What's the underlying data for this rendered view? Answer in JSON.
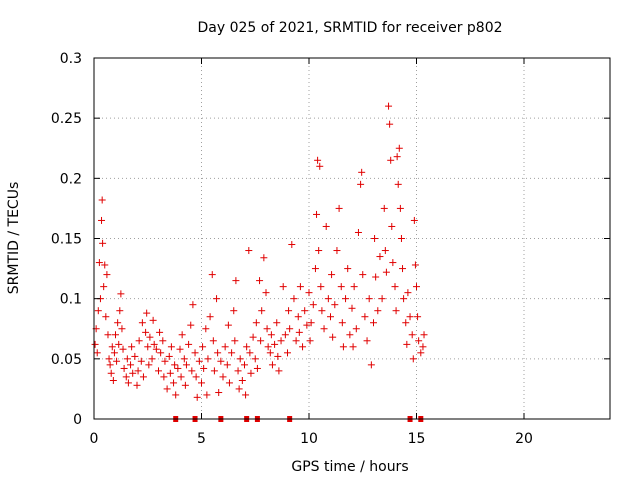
{
  "chart_data": {
    "type": "scatter",
    "title": "Day 025 of 2021, SRMTID for receiver p802",
    "xlabel": "GPS time / hours",
    "ylabel": "SRMTID / TECUs",
    "xlim": [
      0,
      24
    ],
    "ylim": [
      0,
      0.3
    ],
    "x_ticks": [
      0,
      5,
      10,
      15,
      20
    ],
    "y_ticks": [
      0,
      0.05,
      0.1,
      0.15,
      0.2,
      0.25,
      0.3
    ],
    "x_tick_labels": [
      "0",
      "5",
      "10",
      "15",
      "20"
    ],
    "y_tick_labels": [
      "0",
      "0.05",
      "0.1",
      "0.15",
      "0.2",
      "0.25",
      "0.3"
    ],
    "grid": true,
    "marker": "plus",
    "color": "#e00000",
    "series": [
      {
        "name": "SRMTID",
        "points": [
          [
            0.05,
            0.062
          ],
          [
            0.1,
            0.075
          ],
          [
            0.15,
            0.055
          ],
          [
            0.2,
            0.09
          ],
          [
            0.25,
            0.13
          ],
          [
            0.3,
            0.1
          ],
          [
            0.35,
            0.165
          ],
          [
            0.38,
            0.182
          ],
          [
            0.4,
            0.146
          ],
          [
            0.45,
            0.11
          ],
          [
            0.5,
            0.128
          ],
          [
            0.55,
            0.085
          ],
          [
            0.6,
            0.12
          ],
          [
            0.65,
            0.07
          ],
          [
            0.7,
            0.05
          ],
          [
            0.75,
            0.045
          ],
          [
            0.8,
            0.038
          ],
          [
            0.85,
            0.06
          ],
          [
            0.9,
            0.032
          ],
          [
            0.95,
            0.055
          ],
          [
            1.0,
            0.07
          ],
          [
            1.05,
            0.048
          ],
          [
            1.1,
            0.08
          ],
          [
            1.15,
            0.062
          ],
          [
            1.2,
            0.09
          ],
          [
            1.25,
            0.104
          ],
          [
            1.3,
            0.075
          ],
          [
            1.35,
            0.058
          ],
          [
            1.4,
            0.042
          ],
          [
            1.5,
            0.035
          ],
          [
            1.55,
            0.05
          ],
          [
            1.6,
            0.03
          ],
          [
            1.7,
            0.045
          ],
          [
            1.75,
            0.06
          ],
          [
            1.8,
            0.038
          ],
          [
            1.9,
            0.052
          ],
          [
            2.0,
            0.028
          ],
          [
            2.05,
            0.04
          ],
          [
            2.1,
            0.065
          ],
          [
            2.2,
            0.048
          ],
          [
            2.25,
            0.08
          ],
          [
            2.3,
            0.035
          ],
          [
            2.4,
            0.072
          ],
          [
            2.45,
            0.088
          ],
          [
            2.5,
            0.06
          ],
          [
            2.55,
            0.045
          ],
          [
            2.6,
            0.068
          ],
          [
            2.7,
            0.05
          ],
          [
            2.75,
            0.082
          ],
          [
            2.8,
            0.062
          ],
          [
            2.9,
            0.058
          ],
          [
            3.0,
            0.04
          ],
          [
            3.05,
            0.072
          ],
          [
            3.1,
            0.055
          ],
          [
            3.2,
            0.065
          ],
          [
            3.25,
            0.035
          ],
          [
            3.3,
            0.048
          ],
          [
            3.4,
            0.025
          ],
          [
            3.5,
            0.052
          ],
          [
            3.55,
            0.038
          ],
          [
            3.6,
            0.06
          ],
          [
            3.7,
            0.03
          ],
          [
            3.75,
            0.045
          ],
          [
            3.8,
            0.02
          ],
          [
            3.9,
            0.042
          ],
          [
            4.0,
            0.058
          ],
          [
            4.05,
            0.035
          ],
          [
            4.1,
            0.07
          ],
          [
            4.2,
            0.05
          ],
          [
            4.25,
            0.028
          ],
          [
            4.3,
            0.045
          ],
          [
            4.4,
            0.062
          ],
          [
            4.5,
            0.078
          ],
          [
            4.55,
            0.04
          ],
          [
            4.6,
            0.095
          ],
          [
            4.7,
            0.055
          ],
          [
            4.75,
            0.035
          ],
          [
            4.8,
            0.018
          ],
          [
            4.9,
            0.048
          ],
          [
            5.0,
            0.03
          ],
          [
            5.05,
            0.06
          ],
          [
            5.1,
            0.042
          ],
          [
            5.2,
            0.075
          ],
          [
            5.25,
            0.02
          ],
          [
            5.3,
            0.05
          ],
          [
            5.4,
            0.085
          ],
          [
            5.5,
            0.12
          ],
          [
            5.55,
            0.065
          ],
          [
            5.6,
            0.04
          ],
          [
            5.7,
            0.1
          ],
          [
            5.75,
            0.055
          ],
          [
            5.8,
            0.022
          ],
          [
            5.9,
            0.048
          ],
          [
            6.0,
            0.035
          ],
          [
            6.1,
            0.06
          ],
          [
            6.2,
            0.045
          ],
          [
            6.25,
            0.078
          ],
          [
            6.3,
            0.03
          ],
          [
            6.4,
            0.055
          ],
          [
            6.5,
            0.09
          ],
          [
            6.55,
            0.065
          ],
          [
            6.6,
            0.115
          ],
          [
            6.7,
            0.04
          ],
          [
            6.75,
            0.025
          ],
          [
            6.8,
            0.05
          ],
          [
            6.9,
            0.032
          ],
          [
            7.0,
            0.045
          ],
          [
            7.05,
            0.02
          ],
          [
            7.1,
            0.06
          ],
          [
            7.2,
            0.14
          ],
          [
            7.25,
            0.055
          ],
          [
            7.3,
            0.038
          ],
          [
            7.4,
            0.068
          ],
          [
            7.5,
            0.05
          ],
          [
            7.55,
            0.08
          ],
          [
            7.6,
            0.042
          ],
          [
            7.7,
            0.115
          ],
          [
            7.75,
            0.065
          ],
          [
            7.8,
            0.09
          ],
          [
            7.9,
            0.134
          ],
          [
            8.0,
            0.105
          ],
          [
            8.05,
            0.075
          ],
          [
            8.1,
            0.06
          ],
          [
            8.2,
            0.055
          ],
          [
            8.25,
            0.07
          ],
          [
            8.3,
            0.045
          ],
          [
            8.4,
            0.062
          ],
          [
            8.5,
            0.08
          ],
          [
            8.55,
            0.052
          ],
          [
            8.6,
            0.04
          ],
          [
            8.7,
            0.065
          ],
          [
            8.8,
            0.11
          ],
          [
            8.9,
            0.07
          ],
          [
            9.0,
            0.055
          ],
          [
            9.05,
            0.09
          ],
          [
            9.1,
            0.075
          ],
          [
            9.2,
            0.145
          ],
          [
            9.3,
            0.1
          ],
          [
            9.4,
            0.065
          ],
          [
            9.5,
            0.085
          ],
          [
            9.55,
            0.072
          ],
          [
            9.6,
            0.11
          ],
          [
            9.7,
            0.06
          ],
          [
            9.8,
            0.09
          ],
          [
            9.9,
            0.078
          ],
          [
            10.0,
            0.105
          ],
          [
            10.05,
            0.065
          ],
          [
            10.1,
            0.08
          ],
          [
            10.2,
            0.095
          ],
          [
            10.3,
            0.125
          ],
          [
            10.35,
            0.17
          ],
          [
            10.4,
            0.215
          ],
          [
            10.45,
            0.14
          ],
          [
            10.5,
            0.21
          ],
          [
            10.55,
            0.11
          ],
          [
            10.6,
            0.09
          ],
          [
            10.7,
            0.075
          ],
          [
            10.8,
            0.16
          ],
          [
            10.9,
            0.1
          ],
          [
            11.0,
            0.085
          ],
          [
            11.05,
            0.12
          ],
          [
            11.1,
            0.068
          ],
          [
            11.2,
            0.095
          ],
          [
            11.3,
            0.14
          ],
          [
            11.4,
            0.175
          ],
          [
            11.5,
            0.11
          ],
          [
            11.55,
            0.08
          ],
          [
            11.6,
            0.06
          ],
          [
            11.7,
            0.1
          ],
          [
            11.8,
            0.125
          ],
          [
            11.9,
            0.07
          ],
          [
            12.0,
            0.092
          ],
          [
            12.05,
            0.06
          ],
          [
            12.1,
            0.11
          ],
          [
            12.2,
            0.075
          ],
          [
            12.3,
            0.155
          ],
          [
            12.4,
            0.195
          ],
          [
            12.45,
            0.205
          ],
          [
            12.5,
            0.12
          ],
          [
            12.6,
            0.085
          ],
          [
            12.7,
            0.065
          ],
          [
            12.8,
            0.1
          ],
          [
            12.9,
            0.045
          ],
          [
            13.0,
            0.08
          ],
          [
            13.05,
            0.15
          ],
          [
            13.1,
            0.118
          ],
          [
            13.2,
            0.09
          ],
          [
            13.3,
            0.135
          ],
          [
            13.4,
            0.1
          ],
          [
            13.5,
            0.175
          ],
          [
            13.55,
            0.14
          ],
          [
            13.6,
            0.122
          ],
          [
            13.7,
            0.26
          ],
          [
            13.75,
            0.245
          ],
          [
            13.8,
            0.215
          ],
          [
            13.85,
            0.16
          ],
          [
            13.9,
            0.13
          ],
          [
            14.0,
            0.11
          ],
          [
            14.05,
            0.09
          ],
          [
            14.1,
            0.218
          ],
          [
            14.15,
            0.195
          ],
          [
            14.2,
            0.225
          ],
          [
            14.25,
            0.175
          ],
          [
            14.3,
            0.15
          ],
          [
            14.35,
            0.125
          ],
          [
            14.4,
            0.1
          ],
          [
            14.5,
            0.08
          ],
          [
            14.55,
            0.062
          ],
          [
            14.6,
            0.105
          ],
          [
            14.7,
            0.085
          ],
          [
            14.8,
            0.07
          ],
          [
            14.85,
            0.05
          ],
          [
            14.9,
            0.165
          ],
          [
            14.95,
            0.128
          ],
          [
            15.0,
            0.11
          ],
          [
            15.05,
            0.085
          ],
          [
            15.1,
            0.065
          ],
          [
            15.2,
            0.055
          ],
          [
            15.3,
            0.06
          ],
          [
            15.35,
            0.07
          ]
        ]
      }
    ]
  }
}
